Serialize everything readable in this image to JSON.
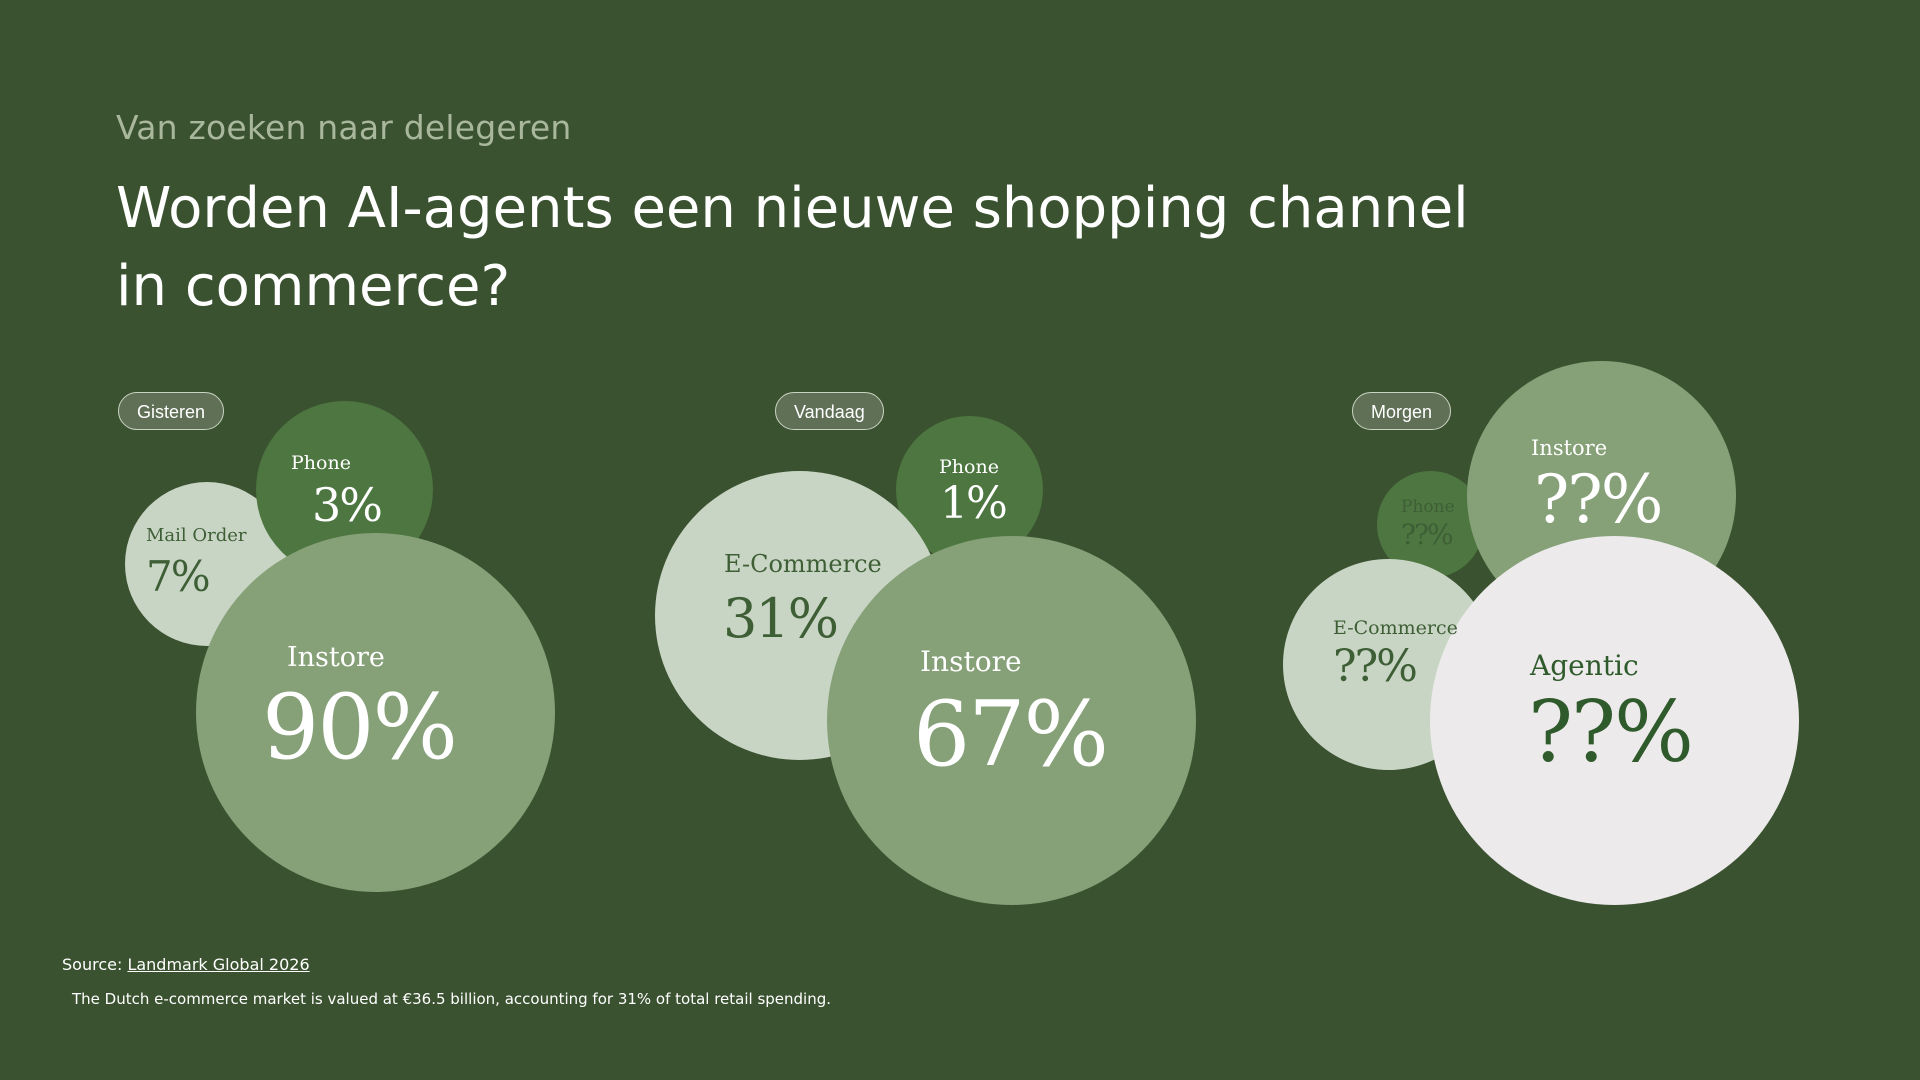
{
  "header": {
    "subtitle": "Van zoeken naar delegeren",
    "title": "Worden AI-agents een nieuwe shopping channel in commerce?"
  },
  "colors": {
    "background": "#3a5230",
    "bubble_dark": "#4d7640",
    "bubble_mid": "#86a078",
    "bubble_light": "#c8d5c4",
    "bubble_white": "#eceaea"
  },
  "groups": {
    "gisteren": {
      "label": "Gisteren",
      "channels": {
        "phone": {
          "label": "Phone",
          "value": "3%"
        },
        "mail_order": {
          "label": "Mail Order",
          "value": "7%"
        },
        "instore": {
          "label": "Instore",
          "value": "90%"
        }
      }
    },
    "vandaag": {
      "label": "Vandaag",
      "channels": {
        "phone": {
          "label": "Phone",
          "value": "1%"
        },
        "ecommerce": {
          "label": "E-Commerce",
          "value": "31%"
        },
        "instore": {
          "label": "Instore",
          "value": "67%"
        }
      }
    },
    "morgen": {
      "label": "Morgen",
      "channels": {
        "phone": {
          "label": "Phone",
          "value": "??%"
        },
        "instore": {
          "label": "Instore",
          "value": "??%"
        },
        "ecommerce": {
          "label": "E-Commerce",
          "value": "??%"
        },
        "agentic": {
          "label": "Agentic",
          "value": "??%"
        }
      }
    }
  },
  "footer": {
    "source_prefix": "Source: ",
    "source_link": "Landmark Global 2026",
    "note": "The Dutch e-commerce market is valued at €36.5 billion, accounting for 31% of total retail spending."
  }
}
